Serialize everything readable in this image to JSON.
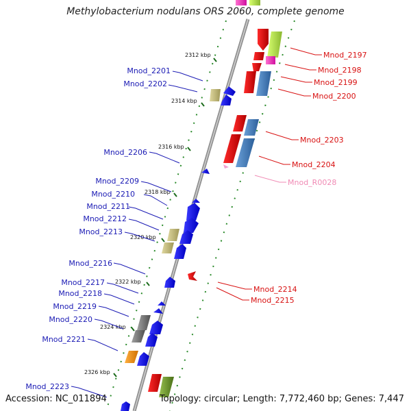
{
  "title": "Methylobacterium nodulans ORS 2060, complete genome",
  "footer": {
    "accession": "Accession: NC_011894",
    "summary": "Topology: circular; Length: 7,772,460 bp; Genes: 7,447"
  },
  "ticks": [
    "2312 kbp",
    "2314 kbp",
    "2316 kbp",
    "2318 kbp",
    "2320 kbp",
    "2322 kbp",
    "2324 kbp",
    "2326 kbp"
  ],
  "labels_left": [
    "Mnod_2201",
    "Mnod_2202",
    "Mnod_2206",
    "Mnod_2209",
    "Mnod_2210",
    "Mnod_2211",
    "Mnod_2212",
    "Mnod_2213",
    "Mnod_2216",
    "Mnod_2217",
    "Mnod_2218",
    "Mnod_2219",
    "Mnod_2220",
    "Mnod_2221",
    "Mnod_2223"
  ],
  "labels_right": [
    "Mnod_2197",
    "Mnod_2198",
    "Mnod_2199",
    "Mnod_2200",
    "Mnod_2203",
    "Mnod_2204",
    "Mnod_R0028",
    "Mnod_2214",
    "Mnod_2215"
  ],
  "colors": {
    "forward_gene": "#e8141c",
    "reverse_gene": "#1818ee",
    "left_label": "#1a1ab4",
    "right_label": "#d81010",
    "rna_label": "#f08ab4",
    "backbone": "#888888"
  }
}
